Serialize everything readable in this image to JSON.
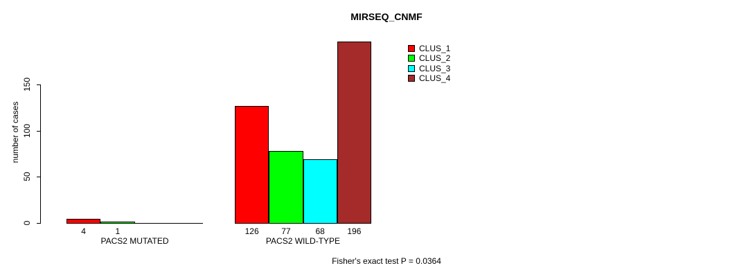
{
  "chart_data": {
    "type": "bar",
    "title": "MIRSEQ_CNMF",
    "xlabel": "",
    "ylabel": "number of cases",
    "yticks": [
      0,
      50,
      100,
      150
    ],
    "ylim": [
      0,
      196
    ],
    "grid": false,
    "categories": [
      "PACS2 MUTATED",
      "PACS2 WILD-TYPE"
    ],
    "series": [
      {
        "name": "CLUS_1",
        "color": "#FF0000",
        "values": [
          4,
          126
        ]
      },
      {
        "name": "CLUS_2",
        "color": "#00FF00",
        "values": [
          1,
          77
        ]
      },
      {
        "name": "CLUS_3",
        "color": "#00FFFF",
        "values": [
          0,
          68
        ]
      },
      {
        "name": "CLUS_4",
        "color": "#A52A2A",
        "values": [
          0,
          196
        ]
      }
    ],
    "bar_value_labels": [
      [
        "4",
        "1",
        "",
        ""
      ],
      [
        "126",
        "77",
        "68",
        "196"
      ]
    ],
    "legend_position": "topright",
    "legend_labels": [
      "CLUS_1",
      "CLUS_2",
      "CLUS_3",
      "CLUS_4"
    ],
    "annotation": "Fisher's exact test P = 0.0364"
  }
}
